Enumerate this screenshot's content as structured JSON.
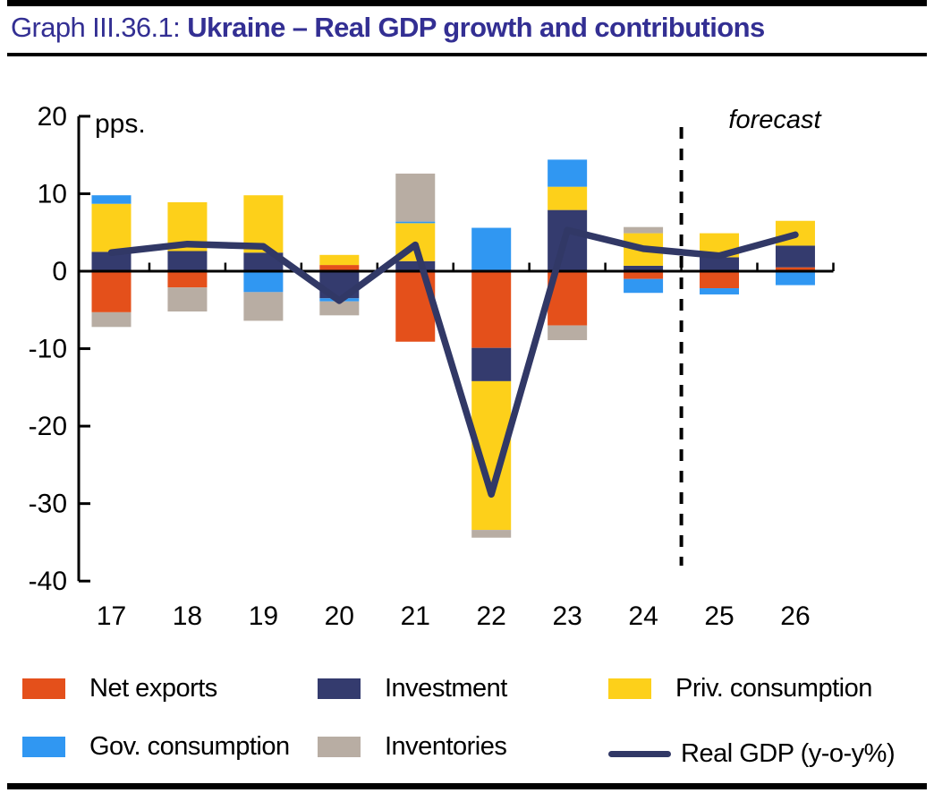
{
  "header": {
    "graph_label": "Graph III.36.1:",
    "title_bold": "Ukraine – Real GDP growth and contributions"
  },
  "colors": {
    "title": "#332F93",
    "axis": "#000000",
    "net_exports": "#E4501B",
    "investment": "#343B6E",
    "priv_consumption": "#FDD01A",
    "gov_consumption": "#3097F2",
    "inventories": "#B8ADA3",
    "gdp_line": "#313866"
  },
  "chart_data": {
    "type": "bar",
    "subtype": "stacked-bar-with-line-overlay",
    "unit_label": "pps.",
    "forecast_label": "forecast",
    "forecast_divider_after_category": "24",
    "categories": [
      "17",
      "18",
      "19",
      "20",
      "21",
      "22",
      "23",
      "24",
      "25",
      "26"
    ],
    "series": [
      {
        "name": "Net exports",
        "color": "#E4501B",
        "values": [
          -5.3,
          -2.1,
          0.0,
          0.8,
          -9.1,
          -9.9,
          -7.0,
          -1.0,
          -2.2,
          0.5
        ]
      },
      {
        "name": "Investment",
        "color": "#343B6E",
        "values": [
          2.5,
          2.6,
          2.4,
          -3.5,
          1.3,
          -4.3,
          7.9,
          0.7,
          1.8,
          2.8
        ]
      },
      {
        "name": "Priv. consumption",
        "color": "#FDD01A",
        "values": [
          6.2,
          6.3,
          7.4,
          1.3,
          4.9,
          -19.2,
          3.0,
          4.2,
          3.1,
          3.2
        ]
      },
      {
        "name": "Gov. consumption",
        "color": "#3097F2",
        "values": [
          1.1,
          0.0,
          -2.7,
          -0.4,
          0.2,
          5.6,
          3.5,
          -1.8,
          -0.8,
          -1.8
        ]
      },
      {
        "name": "Inventories",
        "color": "#B8ADA3",
        "values": [
          -1.9,
          -3.1,
          -3.7,
          -1.8,
          6.2,
          -1.0,
          -1.9,
          0.8,
          0.0,
          0.0
        ]
      }
    ],
    "line_series": {
      "name": "Real GDP (y-o-y%)",
      "color": "#313866",
      "values": [
        2.4,
        3.5,
        3.2,
        -3.8,
        3.4,
        -28.8,
        5.3,
        2.9,
        2.0,
        4.7
      ]
    },
    "ylim": [
      -40,
      20
    ],
    "yticks": [
      20,
      10,
      0,
      -10,
      -20,
      -30,
      -40
    ],
    "grid": "off",
    "legend_position": "bottom"
  }
}
